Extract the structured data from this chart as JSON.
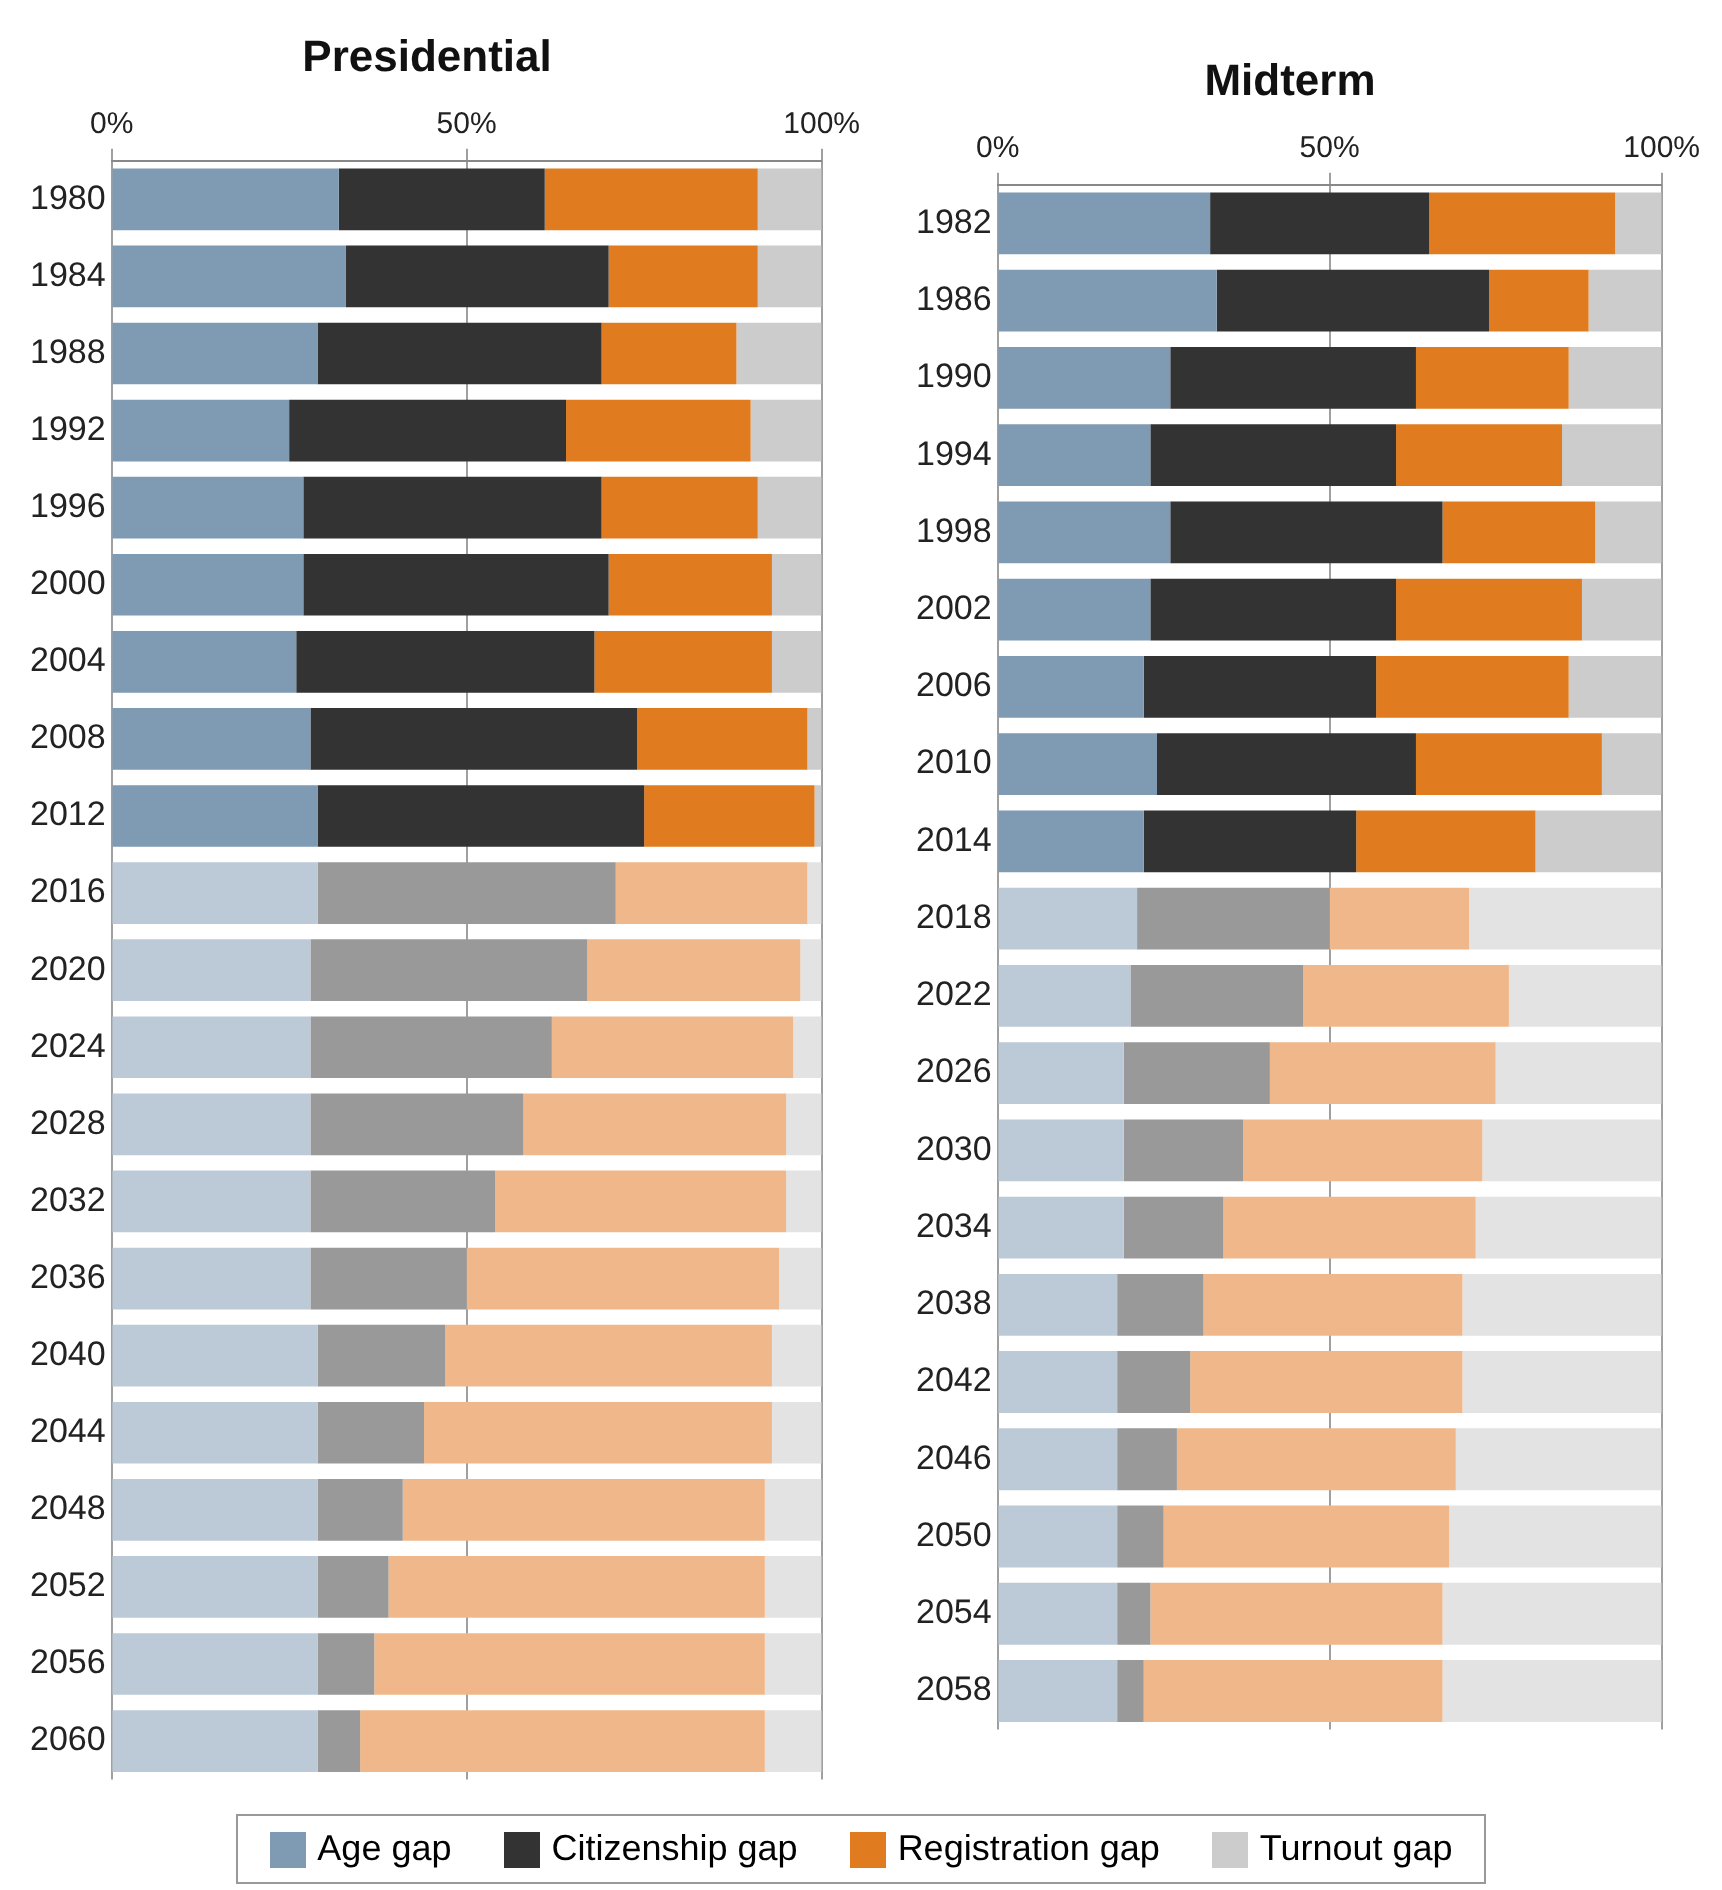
{
  "chart_data": [
    {
      "type": "bar",
      "title": "Presidential",
      "orientation": "horizontal",
      "stacked": true,
      "grid": "x",
      "legend": "bottom",
      "categories": [
        "1980",
        "1984",
        "1988",
        "1992",
        "1996",
        "2000",
        "2004",
        "2008",
        "2012",
        "2016",
        "2020",
        "2024",
        "2028",
        "2032",
        "2036",
        "2040",
        "2044",
        "2048",
        "2052",
        "2056",
        "2060"
      ],
      "xlim": [
        0,
        100
      ],
      "xticks": [
        {
          "value": 0,
          "label": "0%"
        },
        {
          "value": 50,
          "label": "50%"
        },
        {
          "value": 100,
          "label": "100%"
        }
      ],
      "series": [
        {
          "name": "Age gap",
          "color": "#7f9ab3",
          "colors": [
            "#7f9ab3",
            "#7f9ab3",
            "#7f9ab3",
            "#7f9ab3",
            "#7f9ab3",
            "#7f9ab3",
            "#7f9ab3",
            "#7f9ab3",
            "#7f9ab3",
            "#bccad7",
            "#bccad7",
            "#bccad7",
            "#bccad7",
            "#bccad7",
            "#bccad7",
            "#bccad7",
            "#bccad7",
            "#bccad7",
            "#bccad7",
            "#bccad7",
            "#bccad7"
          ],
          "values": [
            32,
            33,
            29,
            25,
            27,
            27,
            26,
            28,
            29,
            29,
            28,
            28,
            28,
            28,
            28,
            29,
            29,
            29,
            29,
            29,
            29
          ]
        },
        {
          "name": "Citizenship gap",
          "color": "#333333",
          "colors": [
            "#333333",
            "#333333",
            "#333333",
            "#333333",
            "#333333",
            "#333333",
            "#333333",
            "#333333",
            "#333333",
            "#999999",
            "#999999",
            "#999999",
            "#999999",
            "#999999",
            "#999999",
            "#999999",
            "#999999",
            "#999999",
            "#999999",
            "#999999",
            "#999999"
          ],
          "values": [
            29,
            37,
            40,
            39,
            42,
            43,
            42,
            46,
            46,
            42,
            39,
            34,
            30,
            26,
            22,
            18,
            15,
            12,
            10,
            8,
            6
          ]
        },
        {
          "name": "Registration gap",
          "color": "#e07b1f",
          "colors": [
            "#e07b1f",
            "#e07b1f",
            "#e07b1f",
            "#e07b1f",
            "#e07b1f",
            "#e07b1f",
            "#e07b1f",
            "#e07b1f",
            "#e07b1f",
            "#f0b88a",
            "#f0b88a",
            "#f0b88a",
            "#f0b88a",
            "#f0b88a",
            "#f0b88a",
            "#f0b88a",
            "#f0b88a",
            "#f0b88a",
            "#f0b88a",
            "#f0b88a",
            "#f0b88a"
          ],
          "values": [
            30,
            21,
            19,
            26,
            22,
            23,
            25,
            24,
            24,
            27,
            30,
            34,
            37,
            41,
            44,
            46,
            49,
            51,
            53,
            55,
            57
          ]
        },
        {
          "name": "Turnout gap",
          "color": "#cccccc",
          "colors": [
            "#cccccc",
            "#cccccc",
            "#cccccc",
            "#cccccc",
            "#cccccc",
            "#cccccc",
            "#cccccc",
            "#cccccc",
            "#cccccc",
            "#e3e3e3",
            "#e3e3e3",
            "#e3e3e3",
            "#e3e3e3",
            "#e3e3e3",
            "#e3e3e3",
            "#e3e3e3",
            "#e3e3e3",
            "#e3e3e3",
            "#e3e3e3",
            "#e3e3e3",
            "#e3e3e3"
          ],
          "values": [
            9,
            9,
            12,
            10,
            9,
            7,
            7,
            2,
            1,
            2,
            3,
            4,
            5,
            5,
            6,
            7,
            7,
            8,
            8,
            8,
            8
          ]
        }
      ]
    },
    {
      "type": "bar",
      "title": "Midterm",
      "orientation": "horizontal",
      "stacked": true,
      "grid": "x",
      "categories": [
        "1982",
        "1986",
        "1990",
        "1994",
        "1998",
        "2002",
        "2006",
        "2010",
        "2014",
        "2018",
        "2022",
        "2026",
        "2030",
        "2034",
        "2038",
        "2042",
        "2046",
        "2050",
        "2054",
        "2058"
      ],
      "xlim": [
        0,
        100
      ],
      "xticks": [
        {
          "value": 0,
          "label": "0%"
        },
        {
          "value": 50,
          "label": "50%"
        },
        {
          "value": 100,
          "label": "100%"
        }
      ],
      "series": [
        {
          "colors": [
            "#7f9ab3",
            "#7f9ab3",
            "#7f9ab3",
            "#7f9ab3",
            "#7f9ab3",
            "#7f9ab3",
            "#7f9ab3",
            "#7f9ab3",
            "#7f9ab3",
            "#bccad7",
            "#bccad7",
            "#bccad7",
            "#bccad7",
            "#bccad7",
            "#bccad7",
            "#bccad7",
            "#bccad7",
            "#bccad7",
            "#bccad7",
            "#bccad7"
          ],
          "values": [
            32,
            33,
            26,
            23,
            26,
            23,
            22,
            24,
            22,
            21,
            20,
            19,
            19,
            19,
            18,
            18,
            18,
            18,
            18,
            18
          ]
        },
        {
          "colors": [
            "#333333",
            "#333333",
            "#333333",
            "#333333",
            "#333333",
            "#333333",
            "#333333",
            "#333333",
            "#333333",
            "#999999",
            "#999999",
            "#999999",
            "#999999",
            "#999999",
            "#999999",
            "#999999",
            "#999999",
            "#999999",
            "#999999",
            "#999999"
          ],
          "values": [
            33,
            41,
            37,
            37,
            41,
            37,
            35,
            39,
            32,
            29,
            26,
            22,
            18,
            15,
            13,
            11,
            9,
            7,
            5,
            4
          ]
        },
        {
          "colors": [
            "#e07b1f",
            "#e07b1f",
            "#e07b1f",
            "#e07b1f",
            "#e07b1f",
            "#e07b1f",
            "#e07b1f",
            "#e07b1f",
            "#e07b1f",
            "#f0b88a",
            "#f0b88a",
            "#f0b88a",
            "#f0b88a",
            "#f0b88a",
            "#f0b88a",
            "#f0b88a",
            "#f0b88a",
            "#f0b88a",
            "#f0b88a",
            "#f0b88a"
          ],
          "values": [
            28,
            15,
            23,
            25,
            23,
            28,
            29,
            28,
            27,
            21,
            31,
            34,
            36,
            38,
            39,
            41,
            42,
            43,
            44,
            45
          ]
        },
        {
          "colors": [
            "#cccccc",
            "#cccccc",
            "#cccccc",
            "#cccccc",
            "#cccccc",
            "#cccccc",
            "#cccccc",
            "#cccccc",
            "#cccccc",
            "#e3e3e3",
            "#e3e3e3",
            "#e3e3e3",
            "#e3e3e3",
            "#e3e3e3",
            "#e3e3e3",
            "#e3e3e3",
            "#e3e3e3",
            "#e3e3e3",
            "#e3e3e3",
            "#e3e3e3"
          ],
          "values": [
            7,
            11,
            14,
            15,
            10,
            12,
            14,
            9,
            19,
            29,
            23,
            25,
            27,
            28,
            30,
            30,
            31,
            32,
            33,
            33
          ]
        }
      ]
    }
  ]
}
